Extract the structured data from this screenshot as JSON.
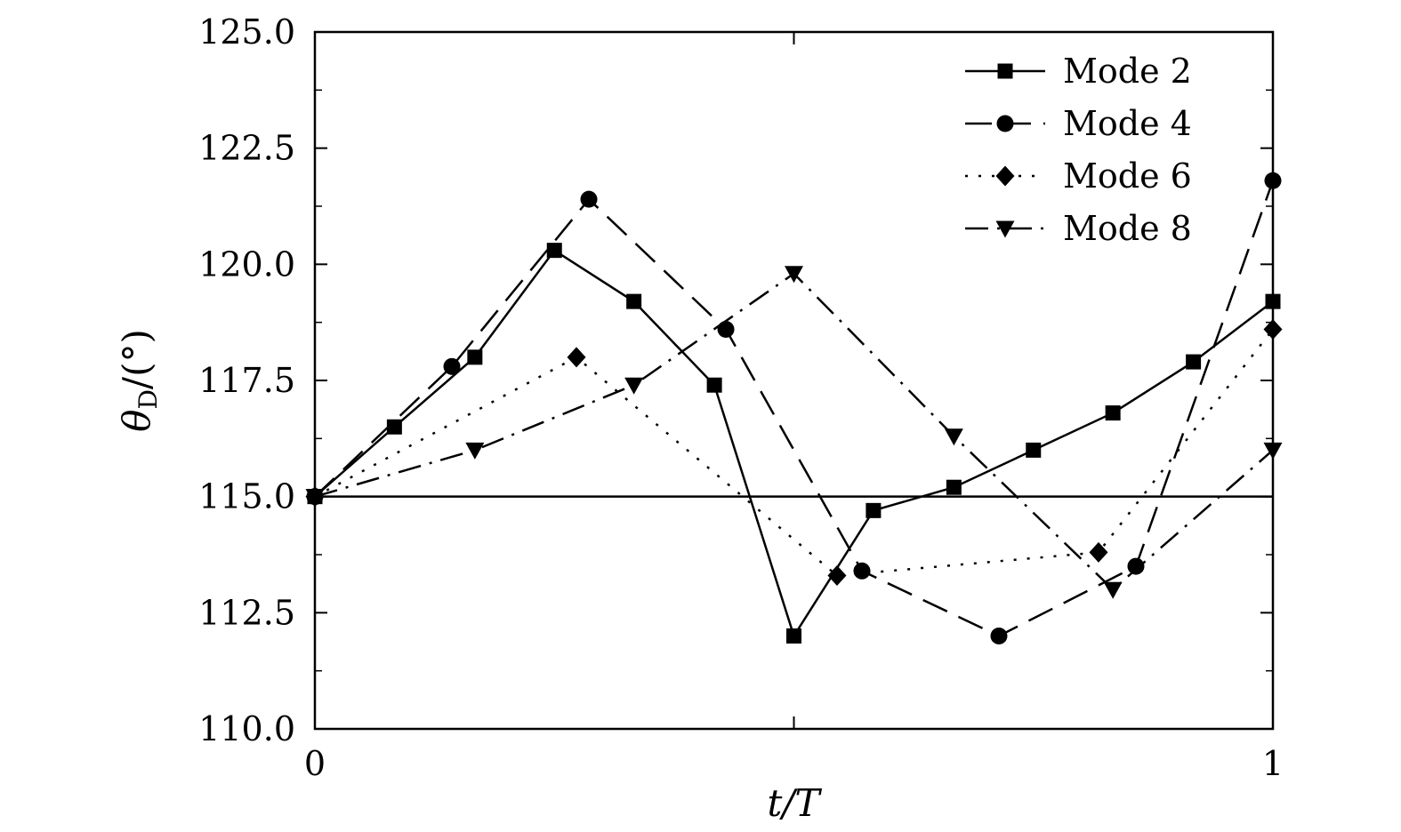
{
  "chart_data": {
    "type": "line",
    "title": "",
    "xlabel": "t/T",
    "ylabel": "θD/(°)",
    "xlim": [
      0,
      1
    ],
    "ylim": [
      110.0,
      125.0
    ],
    "x_ticks": [
      0,
      0.5,
      1
    ],
    "x_tick_labels": [
      "0",
      "",
      "1"
    ],
    "y_ticks": [
      110.0,
      112.5,
      115.0,
      117.5,
      120.0,
      122.5,
      125.0
    ],
    "y_tick_labels": [
      "110.0",
      "112.5",
      "115.0",
      "117.5",
      "120.0",
      "122.5",
      "125.0"
    ],
    "y_minor_step": 1.25,
    "reference_line": 115.0,
    "legend_position": "top-right",
    "grid": false,
    "series": [
      {
        "name": "Mode 2",
        "marker": "square",
        "dash": "solid",
        "x": [
          0,
          0.083,
          0.167,
          0.25,
          0.333,
          0.417,
          0.5,
          0.583,
          0.667,
          0.75,
          0.833,
          0.917,
          1.0
        ],
        "y": [
          115.0,
          116.5,
          118.0,
          120.3,
          119.2,
          117.4,
          112.0,
          114.7,
          115.2,
          116.0,
          116.8,
          117.9,
          119.2
        ]
      },
      {
        "name": "Mode 4",
        "marker": "circle",
        "dash": "dashed",
        "x": [
          0,
          0.143,
          0.286,
          0.429,
          0.571,
          0.714,
          0.857,
          1.0
        ],
        "y": [
          115.0,
          117.8,
          121.4,
          118.6,
          113.4,
          112.0,
          113.5,
          121.8
        ]
      },
      {
        "name": "Mode 6",
        "marker": "diamond",
        "dash": "dotted",
        "x": [
          0,
          0.273,
          0.545,
          0.818,
          1.0
        ],
        "y": [
          115.0,
          118.0,
          113.3,
          113.8,
          118.6
        ]
      },
      {
        "name": "Mode 8",
        "marker": "triangle-down",
        "dash": "dash-dot",
        "x": [
          0,
          0.167,
          0.333,
          0.5,
          0.667,
          0.833,
          1.0
        ],
        "y": [
          115.0,
          116.0,
          117.4,
          119.8,
          116.3,
          113.0,
          116.0
        ]
      }
    ]
  }
}
